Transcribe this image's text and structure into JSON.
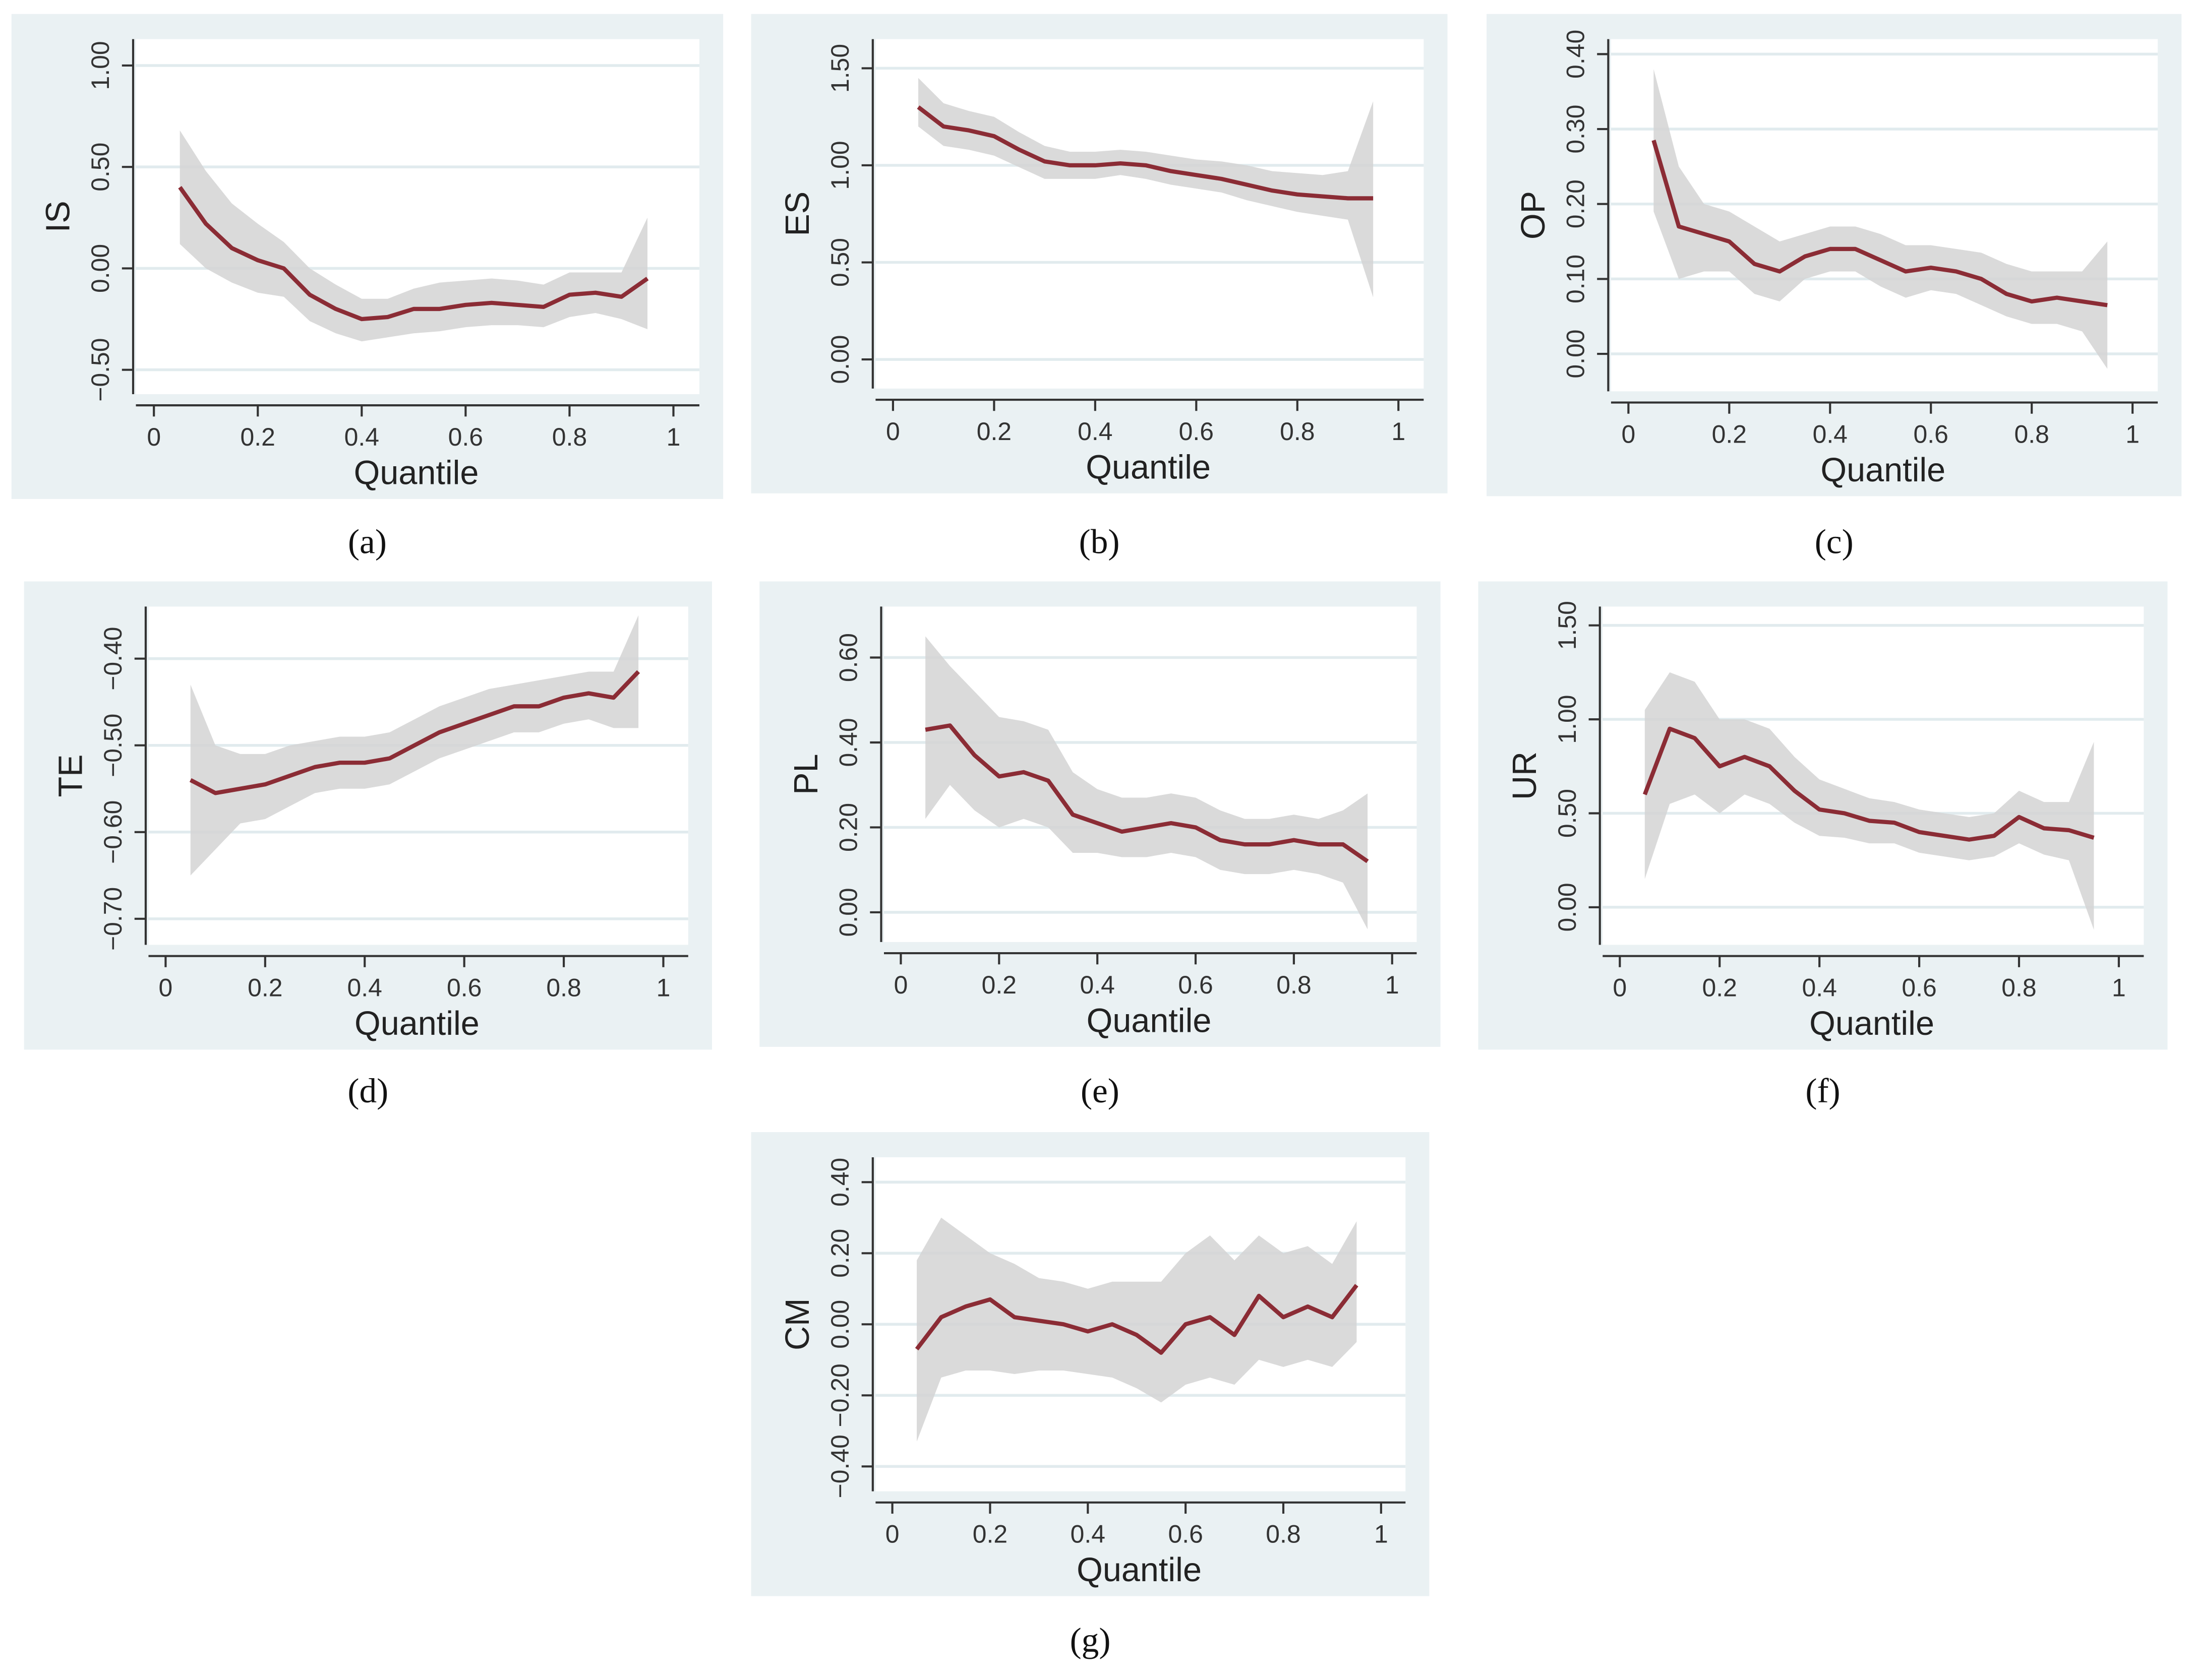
{
  "chart_data": [
    {
      "type": "line",
      "caption": "(a)",
      "x_label": "Quantile",
      "y_label": "IS",
      "grid": true,
      "line_color": "#8b2c35",
      "band_color": "#d3d3d3",
      "x": [
        0.05,
        0.1,
        0.15,
        0.2,
        0.25,
        0.3,
        0.35,
        0.4,
        0.45,
        0.5,
        0.55,
        0.6,
        0.65,
        0.7,
        0.75,
        0.8,
        0.85,
        0.9,
        0.95
      ],
      "values": [
        0.4,
        0.22,
        0.1,
        0.04,
        0.0,
        -0.13,
        -0.2,
        -0.25,
        -0.24,
        -0.2,
        -0.2,
        -0.18,
        -0.17,
        -0.18,
        -0.19,
        -0.13,
        -0.12,
        -0.14,
        -0.05
      ],
      "upper": [
        0.68,
        0.48,
        0.32,
        0.22,
        0.13,
        0.0,
        -0.08,
        -0.15,
        -0.15,
        -0.1,
        -0.07,
        -0.06,
        -0.05,
        -0.06,
        -0.08,
        -0.02,
        -0.02,
        -0.02,
        0.25
      ],
      "lower": [
        0.12,
        0.0,
        -0.07,
        -0.12,
        -0.14,
        -0.26,
        -0.32,
        -0.36,
        -0.34,
        -0.32,
        -0.31,
        -0.29,
        -0.28,
        -0.28,
        -0.29,
        -0.24,
        -0.22,
        -0.25,
        -0.3
      ],
      "xlim": [
        -0.04,
        1.05
      ],
      "xticks": [
        0,
        0.2,
        0.4,
        0.6,
        0.8,
        1
      ],
      "ylim": [
        -0.62,
        1.13
      ],
      "yticks": [
        {
          "value": -0.5,
          "label": "−0.50"
        },
        {
          "value": 0,
          "label": "0.00"
        },
        {
          "value": 0.5,
          "label": "0.50"
        },
        {
          "value": 1,
          "label": "1.00"
        }
      ]
    },
    {
      "type": "line",
      "caption": "(b)",
      "x_label": "Quantile",
      "y_label": "ES",
      "grid": true,
      "line_color": "#8b2c35",
      "band_color": "#d3d3d3",
      "x": [
        0.05,
        0.1,
        0.15,
        0.2,
        0.25,
        0.3,
        0.35,
        0.4,
        0.45,
        0.5,
        0.55,
        0.6,
        0.65,
        0.7,
        0.75,
        0.8,
        0.85,
        0.9,
        0.95
      ],
      "values": [
        1.3,
        1.2,
        1.18,
        1.15,
        1.08,
        1.02,
        1.0,
        1.0,
        1.01,
        1.0,
        0.97,
        0.95,
        0.93,
        0.9,
        0.87,
        0.85,
        0.84,
        0.83,
        0.83
      ],
      "upper": [
        1.45,
        1.32,
        1.28,
        1.25,
        1.17,
        1.1,
        1.07,
        1.07,
        1.08,
        1.07,
        1.05,
        1.03,
        1.02,
        1.0,
        0.97,
        0.96,
        0.95,
        0.97,
        1.33
      ],
      "lower": [
        1.2,
        1.1,
        1.08,
        1.05,
        0.99,
        0.93,
        0.93,
        0.93,
        0.95,
        0.93,
        0.9,
        0.88,
        0.86,
        0.82,
        0.79,
        0.76,
        0.74,
        0.72,
        0.32
      ],
      "xlim": [
        -0.04,
        1.05
      ],
      "xticks": [
        0,
        0.2,
        0.4,
        0.6,
        0.8,
        1
      ],
      "ylim": [
        -0.15,
        1.65
      ],
      "yticks": [
        {
          "value": 0,
          "label": "0.00"
        },
        {
          "value": 0.5,
          "label": "0.50"
        },
        {
          "value": 1,
          "label": "1.00"
        },
        {
          "value": 1.5,
          "label": "1.50"
        }
      ]
    },
    {
      "type": "line",
      "caption": "(c)",
      "x_label": "Quantile",
      "y_label": "OP",
      "grid": true,
      "line_color": "#8b2c35",
      "band_color": "#d3d3d3",
      "x": [
        0.05,
        0.1,
        0.15,
        0.2,
        0.25,
        0.3,
        0.35,
        0.4,
        0.45,
        0.5,
        0.55,
        0.6,
        0.65,
        0.7,
        0.75,
        0.8,
        0.85,
        0.9,
        0.95
      ],
      "values": [
        0.285,
        0.17,
        0.16,
        0.15,
        0.12,
        0.11,
        0.13,
        0.14,
        0.14,
        0.125,
        0.11,
        0.115,
        0.11,
        0.1,
        0.08,
        0.07,
        0.075,
        0.07,
        0.065
      ],
      "upper": [
        0.38,
        0.25,
        0.2,
        0.19,
        0.17,
        0.15,
        0.16,
        0.17,
        0.17,
        0.16,
        0.145,
        0.145,
        0.14,
        0.135,
        0.12,
        0.11,
        0.11,
        0.11,
        0.15
      ],
      "lower": [
        0.19,
        0.1,
        0.11,
        0.11,
        0.08,
        0.07,
        0.1,
        0.11,
        0.11,
        0.09,
        0.075,
        0.085,
        0.08,
        0.065,
        0.05,
        0.04,
        0.04,
        0.03,
        -0.02
      ],
      "xlim": [
        -0.04,
        1.05
      ],
      "xticks": [
        0,
        0.2,
        0.4,
        0.6,
        0.8,
        1
      ],
      "ylim": [
        -0.05,
        0.42
      ],
      "yticks": [
        {
          "value": 0,
          "label": "0.00"
        },
        {
          "value": 0.1,
          "label": "0.10"
        },
        {
          "value": 0.2,
          "label": "0.20"
        },
        {
          "value": 0.3,
          "label": "0.30"
        },
        {
          "value": 0.4,
          "label": "0.40"
        }
      ]
    },
    {
      "type": "line",
      "caption": "(d)",
      "x_label": "Quantile",
      "y_label": "TE",
      "grid": true,
      "line_color": "#8b2c35",
      "band_color": "#d3d3d3",
      "x": [
        0.05,
        0.1,
        0.15,
        0.2,
        0.25,
        0.3,
        0.35,
        0.4,
        0.45,
        0.5,
        0.55,
        0.6,
        0.65,
        0.7,
        0.75,
        0.8,
        0.85,
        0.9,
        0.95
      ],
      "values": [
        -0.54,
        -0.555,
        -0.55,
        -0.545,
        -0.535,
        -0.525,
        -0.52,
        -0.52,
        -0.515,
        -0.5,
        -0.485,
        -0.475,
        -0.465,
        -0.455,
        -0.455,
        -0.445,
        -0.44,
        -0.445,
        -0.415
      ],
      "upper": [
        -0.43,
        -0.5,
        -0.51,
        -0.51,
        -0.5,
        -0.495,
        -0.49,
        -0.49,
        -0.485,
        -0.47,
        -0.455,
        -0.445,
        -0.435,
        -0.43,
        -0.425,
        -0.42,
        -0.415,
        -0.415,
        -0.35
      ],
      "lower": [
        -0.65,
        -0.62,
        -0.59,
        -0.585,
        -0.57,
        -0.555,
        -0.55,
        -0.55,
        -0.545,
        -0.53,
        -0.515,
        -0.505,
        -0.495,
        -0.485,
        -0.485,
        -0.475,
        -0.47,
        -0.48,
        -0.48
      ],
      "xlim": [
        -0.04,
        1.05
      ],
      "xticks": [
        0,
        0.2,
        0.4,
        0.6,
        0.8,
        1
      ],
      "ylim": [
        -0.73,
        -0.34
      ],
      "yticks": [
        {
          "value": -0.7,
          "label": "−0.70"
        },
        {
          "value": -0.6,
          "label": "−0.60"
        },
        {
          "value": -0.5,
          "label": "−0.50"
        },
        {
          "value": -0.4,
          "label": "−0.40"
        }
      ]
    },
    {
      "type": "line",
      "caption": "(e)",
      "x_label": "Quantile",
      "y_label": "PL",
      "grid": true,
      "line_color": "#8b2c35",
      "band_color": "#d3d3d3",
      "x": [
        0.05,
        0.1,
        0.15,
        0.2,
        0.25,
        0.3,
        0.35,
        0.4,
        0.45,
        0.5,
        0.55,
        0.6,
        0.65,
        0.7,
        0.75,
        0.8,
        0.85,
        0.9,
        0.95
      ],
      "values": [
        0.43,
        0.44,
        0.37,
        0.32,
        0.33,
        0.31,
        0.23,
        0.21,
        0.19,
        0.2,
        0.21,
        0.2,
        0.17,
        0.16,
        0.16,
        0.17,
        0.16,
        0.16,
        0.12
      ],
      "upper": [
        0.65,
        0.58,
        0.52,
        0.46,
        0.45,
        0.43,
        0.33,
        0.29,
        0.27,
        0.27,
        0.28,
        0.27,
        0.24,
        0.22,
        0.22,
        0.23,
        0.22,
        0.24,
        0.28
      ],
      "lower": [
        0.22,
        0.3,
        0.24,
        0.2,
        0.22,
        0.2,
        0.14,
        0.14,
        0.13,
        0.13,
        0.14,
        0.13,
        0.1,
        0.09,
        0.09,
        0.1,
        0.09,
        0.07,
        -0.04
      ],
      "xlim": [
        -0.04,
        1.05
      ],
      "xticks": [
        0,
        0.2,
        0.4,
        0.6,
        0.8,
        1
      ],
      "ylim": [
        -0.07,
        0.72
      ],
      "yticks": [
        {
          "value": 0,
          "label": "0.00"
        },
        {
          "value": 0.2,
          "label": "0.20"
        },
        {
          "value": 0.4,
          "label": "0.40"
        },
        {
          "value": 0.6,
          "label": "0.60"
        }
      ]
    },
    {
      "type": "line",
      "caption": "(f)",
      "x_label": "Quantile",
      "y_label": "UR",
      "grid": true,
      "line_color": "#8b2c35",
      "band_color": "#d3d3d3",
      "x": [
        0.05,
        0.1,
        0.15,
        0.2,
        0.25,
        0.3,
        0.35,
        0.4,
        0.45,
        0.5,
        0.55,
        0.6,
        0.65,
        0.7,
        0.75,
        0.8,
        0.85,
        0.9,
        0.95
      ],
      "values": [
        0.6,
        0.95,
        0.9,
        0.75,
        0.8,
        0.75,
        0.62,
        0.52,
        0.5,
        0.46,
        0.45,
        0.4,
        0.38,
        0.36,
        0.38,
        0.48,
        0.42,
        0.41,
        0.37
      ],
      "upper": [
        1.05,
        1.25,
        1.2,
        1.0,
        1.0,
        0.95,
        0.8,
        0.68,
        0.63,
        0.58,
        0.56,
        0.52,
        0.5,
        0.48,
        0.5,
        0.62,
        0.56,
        0.56,
        0.88
      ],
      "lower": [
        0.15,
        0.55,
        0.6,
        0.5,
        0.6,
        0.55,
        0.45,
        0.38,
        0.37,
        0.34,
        0.34,
        0.29,
        0.27,
        0.25,
        0.27,
        0.34,
        0.28,
        0.25,
        -0.12
      ],
      "xlim": [
        -0.04,
        1.05
      ],
      "xticks": [
        0,
        0.2,
        0.4,
        0.6,
        0.8,
        1
      ],
      "ylim": [
        -0.2,
        1.6
      ],
      "yticks": [
        {
          "value": 0,
          "label": "0.00"
        },
        {
          "value": 0.5,
          "label": "0.50"
        },
        {
          "value": 1,
          "label": "1.00"
        },
        {
          "value": 1.5,
          "label": "1.50"
        }
      ]
    },
    {
      "type": "line",
      "caption": "(g)",
      "x_label": "Quantile",
      "y_label": "CM",
      "grid": true,
      "line_color": "#8b2c35",
      "band_color": "#d3d3d3",
      "x": [
        0.05,
        0.1,
        0.15,
        0.2,
        0.25,
        0.3,
        0.35,
        0.4,
        0.45,
        0.5,
        0.55,
        0.6,
        0.65,
        0.7,
        0.75,
        0.8,
        0.85,
        0.9,
        0.95
      ],
      "values": [
        -0.07,
        0.02,
        0.05,
        0.07,
        0.02,
        0.01,
        0.0,
        -0.02,
        0.0,
        -0.03,
        -0.08,
        0.0,
        0.02,
        -0.03,
        0.08,
        0.02,
        0.05,
        0.02,
        0.11
      ],
      "upper": [
        0.18,
        0.3,
        0.25,
        0.2,
        0.17,
        0.13,
        0.12,
        0.1,
        0.12,
        0.12,
        0.12,
        0.2,
        0.25,
        0.18,
        0.25,
        0.2,
        0.22,
        0.17,
        0.29
      ],
      "lower": [
        -0.33,
        -0.15,
        -0.13,
        -0.13,
        -0.14,
        -0.13,
        -0.13,
        -0.14,
        -0.15,
        -0.18,
        -0.22,
        -0.17,
        -0.15,
        -0.17,
        -0.1,
        -0.12,
        -0.1,
        -0.12,
        -0.05
      ],
      "xlim": [
        -0.04,
        1.05
      ],
      "xticks": [
        0,
        0.2,
        0.4,
        0.6,
        0.8,
        1
      ],
      "ylim": [
        -0.47,
        0.47
      ],
      "yticks": [
        {
          "value": -0.4,
          "label": "−0.40"
        },
        {
          "value": -0.2,
          "label": "−0.20"
        },
        {
          "value": 0,
          "label": "0.00"
        },
        {
          "value": 0.2,
          "label": "0.20"
        },
        {
          "value": 0.4,
          "label": "0.40"
        }
      ]
    }
  ]
}
